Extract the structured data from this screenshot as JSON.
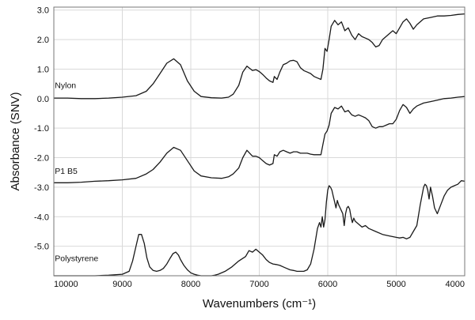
{
  "chart_data": {
    "type": "line",
    "xlabel": "Wavenumbers (cm⁻¹)",
    "ylabel": "Absorbance (SNV)",
    "xlim": [
      10000,
      4000
    ],
    "ylim": [
      -6.0,
      3.1
    ],
    "x_ticks": [
      {
        "value": 10000,
        "label": "10000"
      },
      {
        "value": 9000,
        "label": "9000"
      },
      {
        "value": 8000,
        "label": "8000"
      },
      {
        "value": 7000,
        "label": "7000"
      },
      {
        "value": 6000,
        "label": "6000"
      },
      {
        "value": 5000,
        "label": "5000"
      },
      {
        "value": 4000,
        "label": "4000"
      }
    ],
    "y_ticks": [
      {
        "value": 3.0,
        "label": "3.0"
      },
      {
        "value": 2.0,
        "label": "2.0"
      },
      {
        "value": 1.0,
        "label": "1.0"
      },
      {
        "value": 0.0,
        "label": "0.0"
      },
      {
        "value": -1.0,
        "label": "-1.0"
      },
      {
        "value": -2.0,
        "label": "-2.0"
      },
      {
        "value": -3.0,
        "label": "-3.0"
      },
      {
        "value": -4.0,
        "label": "-4.0"
      },
      {
        "value": -5.0,
        "label": "-5.0"
      }
    ],
    "grid": true,
    "series": [
      {
        "name": "Nylon",
        "label_at": [
          9985,
          0.35
        ],
        "x": [
          10000,
          9800,
          9600,
          9400,
          9200,
          9000,
          8800,
          8650,
          8550,
          8450,
          8350,
          8250,
          8150,
          8050,
          7950,
          7850,
          7700,
          7550,
          7450,
          7380,
          7300,
          7240,
          7180,
          7100,
          7050,
          7000,
          6950,
          6900,
          6850,
          6800,
          6780,
          6740,
          6700,
          6650,
          6600,
          6550,
          6500,
          6450,
          6400,
          6350,
          6300,
          6250,
          6200,
          6150,
          6100,
          6070,
          6040,
          6010,
          5980,
          5950,
          5900,
          5850,
          5800,
          5750,
          5700,
          5650,
          5600,
          5550,
          5500,
          5450,
          5400,
          5350,
          5300,
          5250,
          5200,
          5150,
          5100,
          5050,
          5000,
          4950,
          4900,
          4850,
          4800,
          4750,
          4700,
          4600,
          4500,
          4400,
          4300,
          4200,
          4100,
          4000
        ],
        "y": [
          0.02,
          0.02,
          0.0,
          0.0,
          0.02,
          0.05,
          0.1,
          0.25,
          0.5,
          0.85,
          1.2,
          1.35,
          1.15,
          0.6,
          0.25,
          0.07,
          0.03,
          0.02,
          0.05,
          0.15,
          0.45,
          0.9,
          1.1,
          0.95,
          0.98,
          0.92,
          0.82,
          0.7,
          0.6,
          0.55,
          0.75,
          0.65,
          0.9,
          1.15,
          1.2,
          1.28,
          1.3,
          1.25,
          1.05,
          0.95,
          0.9,
          0.85,
          0.75,
          0.7,
          0.65,
          1.0,
          1.7,
          1.6,
          2.0,
          2.45,
          2.65,
          2.5,
          2.6,
          2.3,
          2.4,
          2.15,
          2.0,
          2.2,
          2.1,
          2.05,
          2.0,
          1.9,
          1.75,
          1.8,
          2.0,
          2.1,
          2.2,
          2.3,
          2.2,
          2.4,
          2.6,
          2.7,
          2.55,
          2.35,
          2.5,
          2.7,
          2.75,
          2.8,
          2.8,
          2.82,
          2.85,
          2.87
        ]
      },
      {
        "name": "P1 B5",
        "label_at": [
          9985,
          -2.55
        ],
        "x": [
          10000,
          9800,
          9600,
          9400,
          9200,
          9000,
          8800,
          8650,
          8550,
          8450,
          8350,
          8250,
          8150,
          8050,
          7950,
          7850,
          7700,
          7550,
          7450,
          7380,
          7300,
          7240,
          7180,
          7100,
          7050,
          7000,
          6950,
          6900,
          6850,
          6800,
          6780,
          6740,
          6700,
          6650,
          6600,
          6550,
          6500,
          6450,
          6400,
          6350,
          6300,
          6250,
          6200,
          6150,
          6100,
          6070,
          6040,
          6010,
          5980,
          5950,
          5900,
          5850,
          5800,
          5750,
          5700,
          5650,
          5600,
          5550,
          5500,
          5450,
          5400,
          5350,
          5300,
          5250,
          5200,
          5150,
          5100,
          5050,
          5000,
          4950,
          4900,
          4850,
          4800,
          4750,
          4700,
          4600,
          4500,
          4400,
          4300,
          4200,
          4100,
          4000
        ],
        "y": [
          -2.85,
          -2.85,
          -2.83,
          -2.8,
          -2.78,
          -2.75,
          -2.7,
          -2.55,
          -2.4,
          -2.15,
          -1.85,
          -1.65,
          -1.75,
          -2.1,
          -2.45,
          -2.62,
          -2.68,
          -2.7,
          -2.65,
          -2.55,
          -2.35,
          -2.0,
          -1.75,
          -1.95,
          -1.95,
          -2.0,
          -2.1,
          -2.2,
          -2.25,
          -2.2,
          -1.9,
          -1.95,
          -1.8,
          -1.75,
          -1.8,
          -1.85,
          -1.8,
          -1.8,
          -1.85,
          -1.85,
          -1.85,
          -1.88,
          -1.9,
          -1.9,
          -1.9,
          -1.55,
          -1.2,
          -1.1,
          -0.9,
          -0.5,
          -0.3,
          -0.35,
          -0.25,
          -0.45,
          -0.4,
          -0.55,
          -0.6,
          -0.55,
          -0.6,
          -0.65,
          -0.75,
          -0.95,
          -1.0,
          -0.95,
          -0.95,
          -0.9,
          -0.85,
          -0.85,
          -0.7,
          -0.4,
          -0.2,
          -0.3,
          -0.5,
          -0.35,
          -0.25,
          -0.15,
          -0.1,
          -0.05,
          0.0,
          0.02,
          0.05,
          0.07
        ]
      },
      {
        "name": "Polystyrene",
        "label_at": [
          9985,
          -5.5
        ],
        "x": [
          10000,
          9800,
          9600,
          9400,
          9200,
          9000,
          8900,
          8850,
          8800,
          8760,
          8720,
          8680,
          8640,
          8600,
          8550,
          8500,
          8450,
          8400,
          8350,
          8300,
          8260,
          8220,
          8180,
          8150,
          8100,
          8050,
          8000,
          7950,
          7900,
          7850,
          7800,
          7750,
          7700,
          7650,
          7600,
          7500,
          7400,
          7300,
          7200,
          7150,
          7100,
          7050,
          7000,
          6950,
          6900,
          6850,
          6800,
          6750,
          6700,
          6650,
          6600,
          6550,
          6500,
          6450,
          6400,
          6350,
          6300,
          6250,
          6200,
          6150,
          6120,
          6100,
          6080,
          6060,
          6040,
          6020,
          6000,
          5980,
          5960,
          5940,
          5920,
          5900,
          5880,
          5860,
          5840,
          5820,
          5800,
          5780,
          5760,
          5740,
          5720,
          5700,
          5680,
          5660,
          5640,
          5620,
          5600,
          5550,
          5500,
          5450,
          5400,
          5300,
          5200,
          5100,
          5000,
          4950,
          4900,
          4850,
          4800,
          4750,
          4700,
          4650,
          4600,
          4580,
          4560,
          4540,
          4520,
          4500,
          4470,
          4440,
          4400,
          4350,
          4300,
          4250,
          4200,
          4150,
          4100,
          4050,
          4000
        ],
        "y": [
          -6.0,
          -6.0,
          -6.0,
          -6.0,
          -5.98,
          -5.95,
          -5.85,
          -5.5,
          -5.0,
          -4.6,
          -4.6,
          -4.9,
          -5.4,
          -5.7,
          -5.82,
          -5.85,
          -5.82,
          -5.75,
          -5.6,
          -5.4,
          -5.25,
          -5.2,
          -5.3,
          -5.45,
          -5.65,
          -5.8,
          -5.9,
          -5.95,
          -5.98,
          -6.0,
          -6.0,
          -6.0,
          -6.0,
          -5.98,
          -5.95,
          -5.85,
          -5.7,
          -5.5,
          -5.35,
          -5.15,
          -5.2,
          -5.1,
          -5.2,
          -5.3,
          -5.45,
          -5.55,
          -5.6,
          -5.62,
          -5.65,
          -5.7,
          -5.75,
          -5.8,
          -5.82,
          -5.85,
          -5.85,
          -5.85,
          -5.8,
          -5.6,
          -5.1,
          -4.4,
          -4.2,
          -4.35,
          -4.0,
          -4.35,
          -4.1,
          -3.5,
          -3.1,
          -2.95,
          -3.0,
          -3.1,
          -3.3,
          -3.5,
          -3.7,
          -3.45,
          -3.6,
          -3.7,
          -3.8,
          -3.9,
          -4.3,
          -3.9,
          -3.7,
          -3.65,
          -3.75,
          -4.0,
          -4.2,
          -4.05,
          -4.15,
          -4.25,
          -4.35,
          -4.3,
          -4.4,
          -4.5,
          -4.6,
          -4.65,
          -4.7,
          -4.72,
          -4.7,
          -4.75,
          -4.7,
          -4.5,
          -4.3,
          -3.6,
          -3.0,
          -2.9,
          -2.95,
          -3.1,
          -3.4,
          -3.0,
          -3.3,
          -3.7,
          -3.9,
          -3.6,
          -3.3,
          -3.1,
          -3.0,
          -2.95,
          -2.9,
          -2.78,
          -2.8
        ]
      }
    ]
  }
}
